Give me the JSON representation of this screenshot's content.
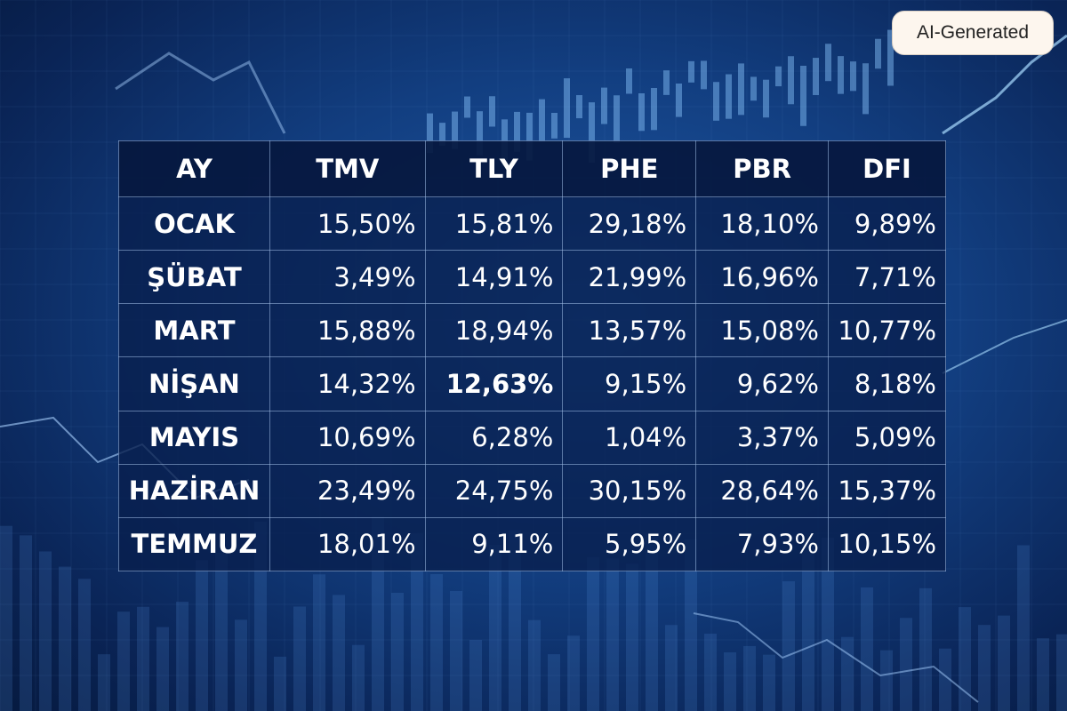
{
  "badge": "AI-Generated",
  "table": {
    "header": [
      "AY",
      "TMV",
      "TLY",
      "PHE",
      "PBR",
      "DFI"
    ],
    "rows": [
      [
        "OCAK",
        "15,50%",
        "15,81%",
        "29,18%",
        "18,10%",
        "9,89%"
      ],
      [
        "ŞÜBAT",
        "3,49%",
        "14,91%",
        "21,99%",
        "16,96%",
        "7,71%"
      ],
      [
        "MART",
        "15,88%",
        "18,94%",
        "13,57%",
        "15,08%",
        "10,77%"
      ],
      [
        "NİŞAN",
        "14,32%",
        "12,63%",
        "9,15%",
        "9,62%",
        "8,18%"
      ],
      [
        "MAYIS",
        "10,69%",
        "6,28%",
        "1,04%",
        "3,37%",
        "5,09%"
      ],
      [
        "HAZİRAN",
        "23,49%",
        "24,75%",
        "30,15%",
        "28,64%",
        "15,37%"
      ],
      [
        "TEMMUZ",
        "18,01%",
        "9,11%",
        "5,95%",
        "7,93%",
        "10,15%"
      ]
    ]
  }
}
